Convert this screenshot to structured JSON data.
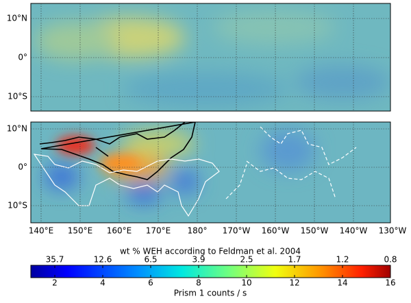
{
  "x_ticks": [
    "140°E",
    "150°E",
    "160°E",
    "170°E",
    "180°",
    "170°W",
    "160°W",
    "150°W",
    "140°W",
    "130°W"
  ],
  "y_ticks": [
    "10°N",
    "0°",
    "10°S"
  ],
  "colorbar": {
    "title": "wt % WEH according to Feldman et al. 2004",
    "range": [
      1,
      16
    ],
    "ticks": [
      2,
      4,
      6,
      8,
      10,
      12,
      14,
      16
    ],
    "top_labels": [
      "35.7",
      "12.6",
      "6.5",
      "3.9",
      "2.5",
      "1.7",
      "1.2",
      "0.8"
    ],
    "label": "Prism 1 counts / s"
  }
}
